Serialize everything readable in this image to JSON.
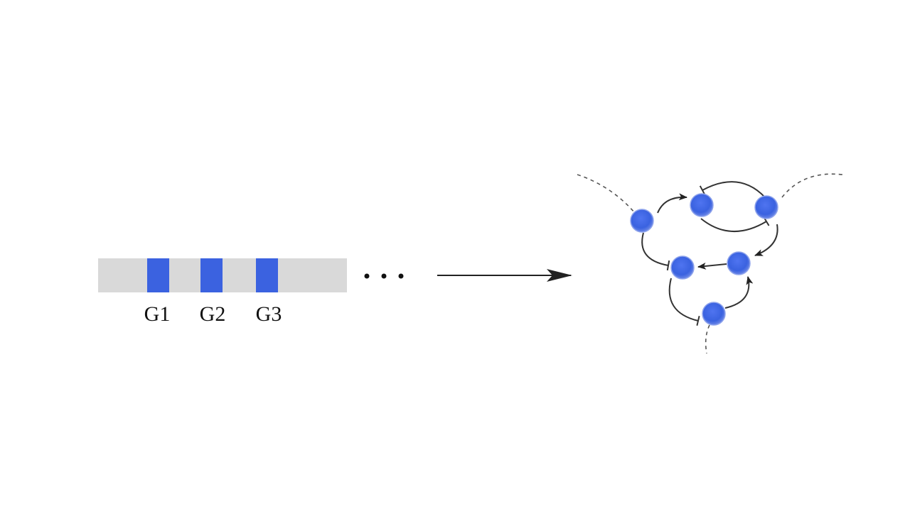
{
  "genome": {
    "genes": [
      {
        "label": "G1"
      },
      {
        "label": "G2"
      },
      {
        "label": "G3"
      }
    ],
    "ellipsis": "...",
    "colors": {
      "bar": "#d9d9d9",
      "gene": "#3b62e0"
    }
  },
  "network": {
    "node_color": "#3b62e0",
    "node_count": 6
  }
}
